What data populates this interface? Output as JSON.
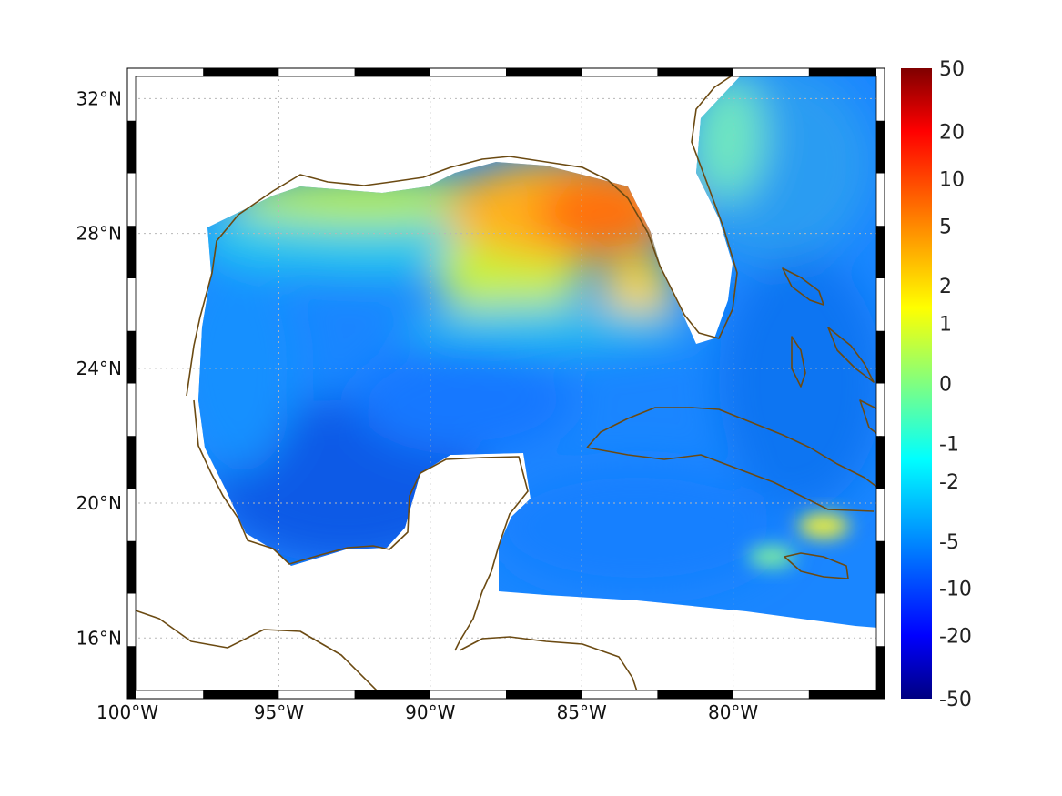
{
  "map": {
    "lon_range": [
      -100,
      -75
    ],
    "lat_range": [
      14.2,
      32.9
    ],
    "lon_ticks": [
      {
        "value": -100,
        "label": "100°W"
      },
      {
        "value": -95,
        "label": "95°W"
      },
      {
        "value": -90,
        "label": "90°W"
      },
      {
        "value": -85,
        "label": "85°W"
      },
      {
        "value": -80,
        "label": "80°W"
      }
    ],
    "lat_ticks": [
      {
        "value": 32,
        "label": "32°N"
      },
      {
        "value": 28,
        "label": "28°N"
      },
      {
        "value": 24,
        "label": "24°N"
      },
      {
        "value": 20,
        "label": "20°N"
      },
      {
        "value": 16,
        "label": "16°N"
      }
    ],
    "grid": "dotted",
    "frame": "alternating black/white border"
  },
  "colorbar": {
    "colormap": "jet",
    "tick_labels": [
      "50",
      "20",
      "10",
      "5",
      "2",
      "1",
      "0",
      "-1",
      "-2",
      "-5",
      "-10",
      "-20",
      "-50"
    ],
    "colors": [
      "#800000",
      "#ff0000",
      "#ff8000",
      "#ffff00",
      "#80ff80",
      "#00ffff",
      "#0080ff",
      "#0000ff",
      "#000080"
    ]
  },
  "colors": {
    "coastline": "#6b4a12",
    "gulf_open_water": "#1e8cff",
    "deep_blue": "#0a64e8",
    "shelf_cyan": "#20c8f0",
    "northern_yellow": "#e6ee22",
    "northeast_orange": "#ff8a0a",
    "atlantic_blue": "#2a8cf4"
  }
}
